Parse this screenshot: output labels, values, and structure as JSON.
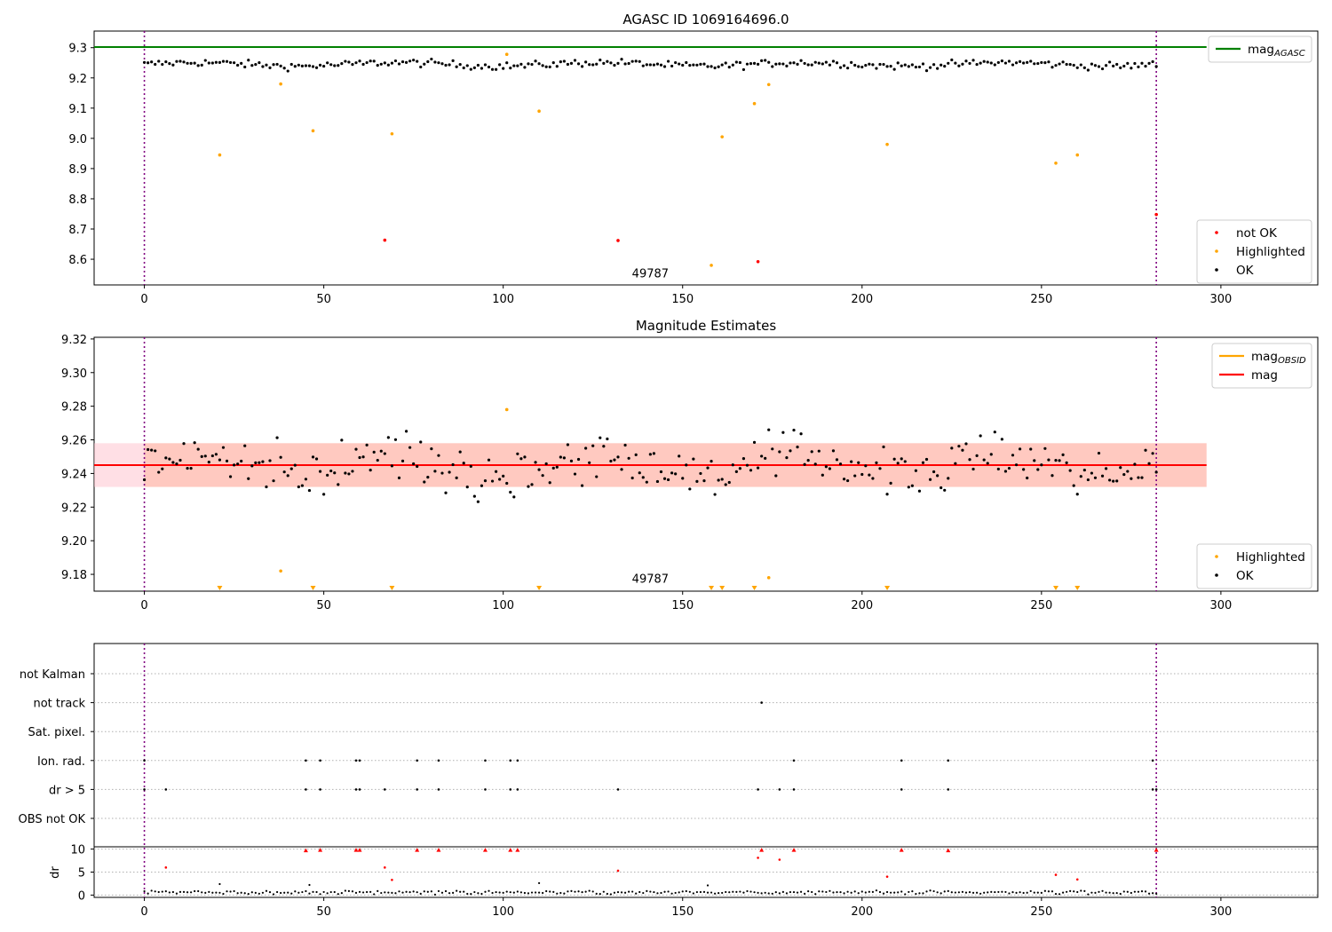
{
  "chart_data": [
    {
      "type": "scatter",
      "title": "AGASC ID 1069164696.0",
      "xlim": [
        -14,
        327
      ],
      "ylim": [
        8.515,
        9.355
      ],
      "xticks": [
        0,
        50,
        100,
        150,
        200,
        250,
        300
      ],
      "yticks": [
        8.6,
        8.7,
        8.8,
        8.9,
        9.0,
        9.1,
        9.2,
        9.3
      ],
      "ytick_format": 1,
      "annotation": {
        "text": "49787",
        "x": 141,
        "y": 8.54
      },
      "vlines": [
        0,
        282
      ],
      "reference_line": {
        "name": "mag_AGASC",
        "y": 9.302,
        "color": "#008000"
      },
      "legend": [
        {
          "label": "mag",
          "sub": "AGASC",
          "kind": "line",
          "color": "#008000"
        },
        {
          "label": "not OK",
          "kind": "point",
          "color": "#ff0000"
        },
        {
          "label": "Highlighted",
          "kind": "point",
          "color": "#ffa500"
        },
        {
          "label": "OK",
          "kind": "point",
          "color": "#000000"
        }
      ],
      "series": [
        {
          "name": "OK",
          "color": "#000000",
          "base": 9.245,
          "noise": 0.012,
          "x_from": 0,
          "x_to": 282
        },
        {
          "name": "Highlighted",
          "color": "#ffa500",
          "points": [
            [
              21,
              8.945
            ],
            [
              38,
              9.18
            ],
            [
              47,
              9.025
            ],
            [
              69,
              9.015
            ],
            [
              101,
              9.278
            ],
            [
              110,
              9.09
            ],
            [
              158,
              8.58
            ],
            [
              161,
              9.005
            ],
            [
              170,
              9.115
            ],
            [
              174,
              9.178
            ],
            [
              207,
              8.98
            ],
            [
              254,
              8.918
            ],
            [
              260,
              8.945
            ]
          ]
        },
        {
          "name": "not OK",
          "color": "#ff0000",
          "points": [
            [
              67,
              8.663
            ],
            [
              132,
              8.662
            ],
            [
              171,
              8.592
            ],
            [
              282,
              8.748
            ]
          ]
        }
      ]
    },
    {
      "type": "scatter",
      "title": "Magnitude Estimates",
      "xlim": [
        -14,
        327
      ],
      "ylim": [
        9.17,
        9.321
      ],
      "xticks": [
        0,
        50,
        100,
        150,
        200,
        250,
        300
      ],
      "yticks": [
        9.18,
        9.2,
        9.22,
        9.24,
        9.26,
        9.28,
        9.3,
        9.32
      ],
      "ytick_format": 2,
      "annotation": {
        "text": "49787",
        "x": 141,
        "y": 9.175
      },
      "vlines": [
        0,
        282
      ],
      "bands": [
        {
          "y0": 9.232,
          "y1": 9.258,
          "x0": -14,
          "x1": 296,
          "color": "#ffc0cb",
          "opacity": 0.5
        },
        {
          "y0": 9.232,
          "y1": 9.258,
          "x0": 0,
          "x1": 296,
          "color": "#ffa07a",
          "opacity": 0.35
        }
      ],
      "lines": [
        {
          "name": "mag_OBSID",
          "y": 9.245,
          "x0": 0,
          "x1": 282,
          "color": "#ffa500"
        },
        {
          "name": "mag",
          "y": 9.245,
          "x0": -14,
          "x1": 296,
          "color": "#ff0000"
        }
      ],
      "legend_top": [
        {
          "label": "mag",
          "sub": "OBSID",
          "kind": "line",
          "color": "#ffa500"
        },
        {
          "label": "mag",
          "kind": "line",
          "color": "#ff0000"
        }
      ],
      "legend_bottom": [
        {
          "label": "Highlighted",
          "kind": "point",
          "color": "#ffa500"
        },
        {
          "label": "OK",
          "kind": "point",
          "color": "#000000"
        }
      ],
      "series": [
        {
          "name": "OK",
          "color": "#000000",
          "base": 9.245,
          "noise": 0.013,
          "x_from": 0,
          "x_to": 282
        },
        {
          "name": "Highlighted",
          "color": "#ffa500",
          "points": [
            [
              38,
              9.182
            ],
            [
              101,
              9.278
            ],
            [
              174,
              9.178
            ]
          ]
        },
        {
          "name": "Highlighted (below axis)",
          "color": "#ffa500",
          "marker": "triangle-down",
          "x": [
            21,
            47,
            69,
            110,
            158,
            161,
            170,
            207,
            254,
            260
          ]
        }
      ]
    },
    {
      "type": "scatter",
      "title": "",
      "xlim": [
        -14,
        327
      ],
      "xticks": [
        0,
        50,
        100,
        150,
        200,
        250,
        300
      ],
      "vlines": [
        0,
        282
      ],
      "flag_rows": [
        "not Kalman",
        "not track",
        "Sat. pixel.",
        "Ion. rad.",
        "dr > 5",
        "OBS not OK"
      ],
      "flags": {
        "not track": [
          172
        ],
        "Ion. rad.": [
          0,
          45,
          49,
          59,
          60,
          76,
          82,
          95,
          102,
          104,
          181,
          211,
          224,
          281
        ],
        "dr > 5": [
          0,
          6,
          45,
          49,
          59,
          60,
          67,
          76,
          82,
          95,
          102,
          104,
          132,
          171,
          177,
          181,
          211,
          224,
          281,
          282
        ]
      },
      "dr": {
        "ylabel": "dr",
        "ylim": [
          -0.5,
          10.5
        ],
        "yticks": [
          0,
          5,
          10
        ],
        "ok_base": 0.6,
        "red_points": [
          [
            6,
            6
          ],
          [
            45,
            9.7
          ],
          [
            49,
            9.8
          ],
          [
            59,
            9.8
          ],
          [
            60,
            9.8
          ],
          [
            67,
            6
          ],
          [
            69,
            3.3
          ],
          [
            76,
            9.8
          ],
          [
            82,
            9.8
          ],
          [
            95,
            9.8
          ],
          [
            102,
            9.8
          ],
          [
            104,
            9.8
          ],
          [
            132,
            5.3
          ],
          [
            171,
            8.1
          ],
          [
            172,
            9.8
          ],
          [
            177,
            7.7
          ],
          [
            181,
            9.8
          ],
          [
            207,
            4
          ],
          [
            211,
            9.8
          ],
          [
            224,
            9.7
          ],
          [
            254,
            4.4
          ],
          [
            260,
            3.4
          ],
          [
            282,
            9.8
          ]
        ]
      }
    }
  ]
}
